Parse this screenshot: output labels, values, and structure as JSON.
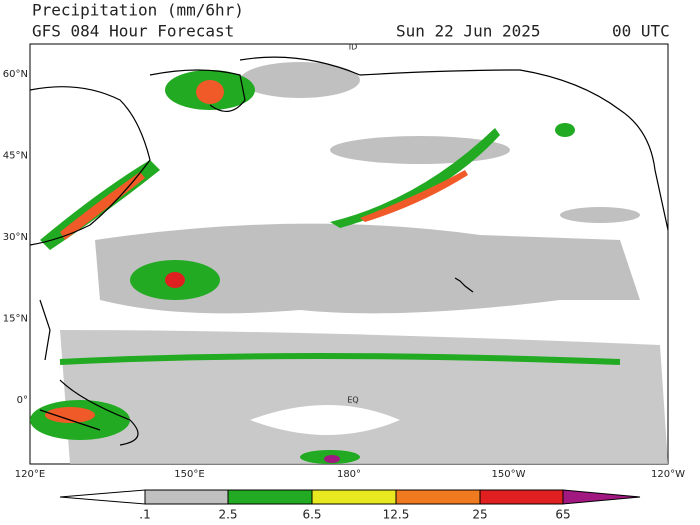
{
  "header": {
    "title": "Precipitation (mm/6hr)",
    "subtitle": "GFS 084 Hour Forecast",
    "date": "Sun 22 Jun 2025",
    "time": "00 UTC"
  },
  "map": {
    "lat_labels": [
      "60°N",
      "45°N",
      "30°N",
      "15°N",
      "0°"
    ],
    "lon_labels": [
      "120°E",
      "150°E",
      "180°",
      "150°W",
      "120°W"
    ],
    "place_labels": [
      "ID",
      "EQ"
    ]
  },
  "colorbar": {
    "labels": [
      ".1",
      "2.5",
      "6.5",
      "12.5",
      "25",
      "65"
    ]
  }
}
